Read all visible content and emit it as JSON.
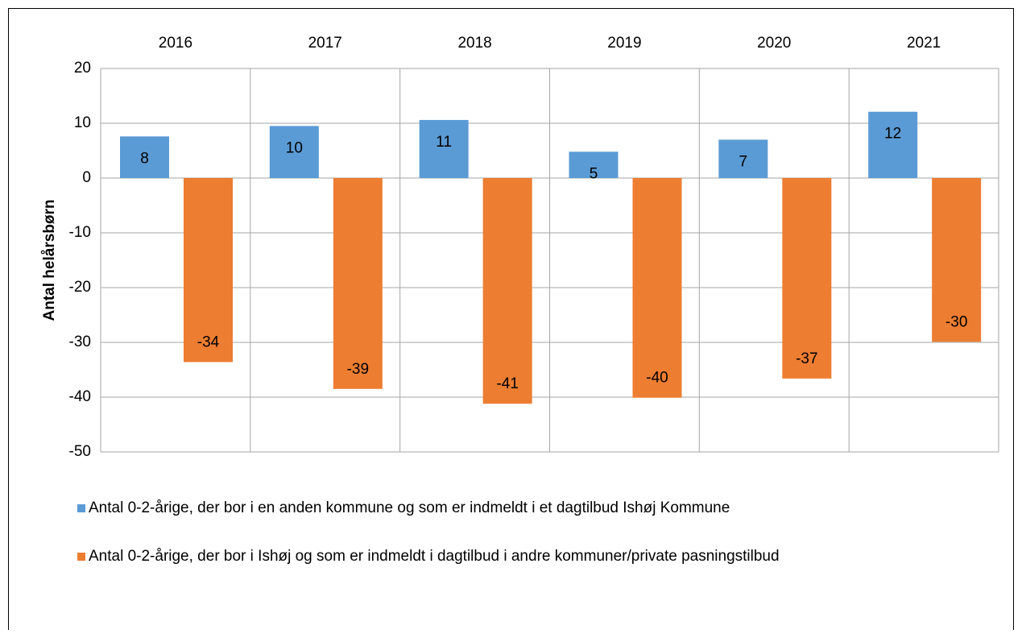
{
  "chart_data": {
    "type": "bar",
    "y_label": "Antal helårsbørn",
    "categories": [
      "2016",
      "2017",
      "2018",
      "2019",
      "2020",
      "2021"
    ],
    "series": [
      {
        "name": "Antal 0-2-årige, der bor i en anden kommune og som er indmeldt i et dagtilbud Ishøj Kommune",
        "color": "#5b9bd5",
        "values": [
          7.6,
          9.5,
          10.6,
          4.8,
          7.0,
          12.1
        ],
        "value_labels": [
          "8",
          "10",
          "11",
          "5",
          "7",
          "12"
        ]
      },
      {
        "name": "Antal 0-2-årige, der bor i Ishøj og som er indmeldt i dagtilbud i andre kommuner/private pasningstilbud",
        "color": "#ed7d31",
        "values": [
          -33.6,
          -38.5,
          -41.2,
          -40.1,
          -36.6,
          -29.9
        ],
        "value_labels": [
          "-34",
          "-39",
          "-41",
          "-40",
          "-37",
          "-30"
        ]
      }
    ],
    "ylim": [
      -50,
      20
    ],
    "yticks": [
      20,
      10,
      0,
      -10,
      -20,
      -30,
      -40,
      -50
    ],
    "grid": true
  }
}
